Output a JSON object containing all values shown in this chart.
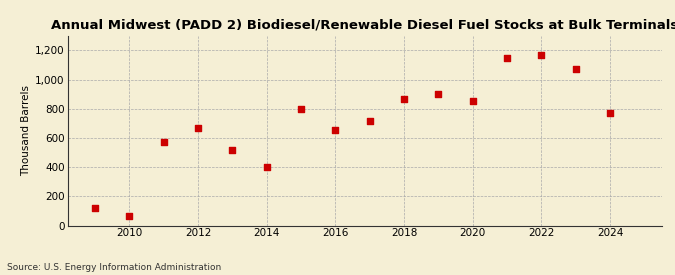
{
  "title": "Annual Midwest (PADD 2) Biodiesel/Renewable Diesel Fuel Stocks at Bulk Terminals",
  "ylabel": "Thousand Barrels",
  "source": "Source: U.S. Energy Information Administration",
  "background_color": "#f5efd5",
  "plot_background_color": "#f5efd5",
  "marker_color": "#cc0000",
  "marker": "s",
  "marker_size": 18,
  "x_data": [
    2009,
    2010,
    2011,
    2012,
    2013,
    2014,
    2015,
    2016,
    2017,
    2018,
    2019,
    2020,
    2021,
    2022,
    2023,
    2024
  ],
  "y_data": [
    120,
    65,
    570,
    665,
    520,
    400,
    800,
    655,
    715,
    870,
    900,
    850,
    1150,
    1165,
    1075,
    770
  ],
  "xlim": [
    2008.2,
    2025.5
  ],
  "ylim": [
    0,
    1300
  ],
  "yticks": [
    0,
    200,
    400,
    600,
    800,
    1000,
    1200
  ],
  "ytick_labels": [
    "0",
    "200",
    "400",
    "600",
    "800",
    "1,000",
    "1,200"
  ],
  "xticks": [
    2010,
    2012,
    2014,
    2016,
    2018,
    2020,
    2022,
    2024
  ],
  "grid_color": "#aaaaaa",
  "title_fontsize": 9.5,
  "label_fontsize": 7.5,
  "tick_fontsize": 7.5,
  "source_fontsize": 6.5
}
